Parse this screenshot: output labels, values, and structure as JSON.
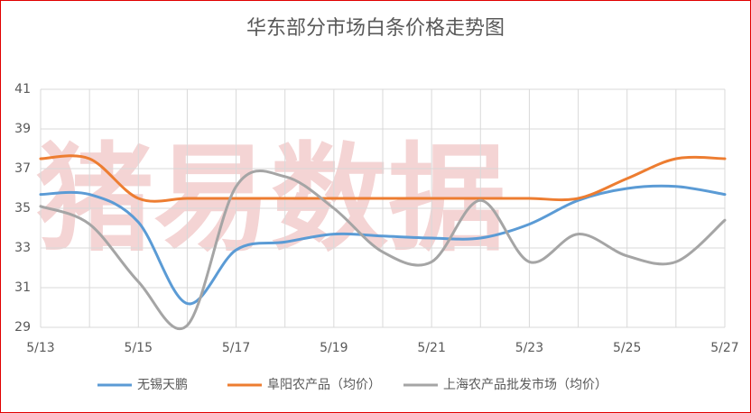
{
  "chart_data": {
    "type": "line",
    "title": "华东部分市场白条价格走势图",
    "watermark": "猪易数据",
    "categories": [
      "5/13",
      null,
      "5/15",
      null,
      "5/17",
      null,
      "5/19",
      null,
      "5/21",
      null,
      "5/23",
      null,
      "5/25",
      null,
      "5/27"
    ],
    "series": [
      {
        "name": "无锡天鹏",
        "color": "#5b9bd5",
        "values": [
          35.7,
          35.7,
          34.3,
          30.2,
          32.9,
          33.3,
          33.7,
          33.6,
          33.5,
          33.5,
          34.2,
          35.4,
          36.0,
          36.1,
          35.7
        ]
      },
      {
        "name": "阜阳农产品（均价）",
        "color": "#ed7d31",
        "values": [
          37.5,
          37.5,
          35.5,
          35.5,
          35.5,
          35.5,
          35.5,
          35.5,
          35.5,
          35.5,
          35.5,
          35.5,
          36.5,
          37.5,
          37.5
        ]
      },
      {
        "name": "上海农产品批发市场（均价）",
        "color": "#a5a5a5",
        "values": [
          35.1,
          34.2,
          31.3,
          29.1,
          36.1,
          36.6,
          35.0,
          32.8,
          32.3,
          35.4,
          32.3,
          33.7,
          32.6,
          32.3,
          34.4
        ]
      }
    ],
    "ylim": [
      29,
      41
    ],
    "yticks": [
      29,
      31,
      33,
      35,
      37,
      39,
      41
    ],
    "grid": true,
    "smooth": true,
    "legend": "bottom"
  }
}
